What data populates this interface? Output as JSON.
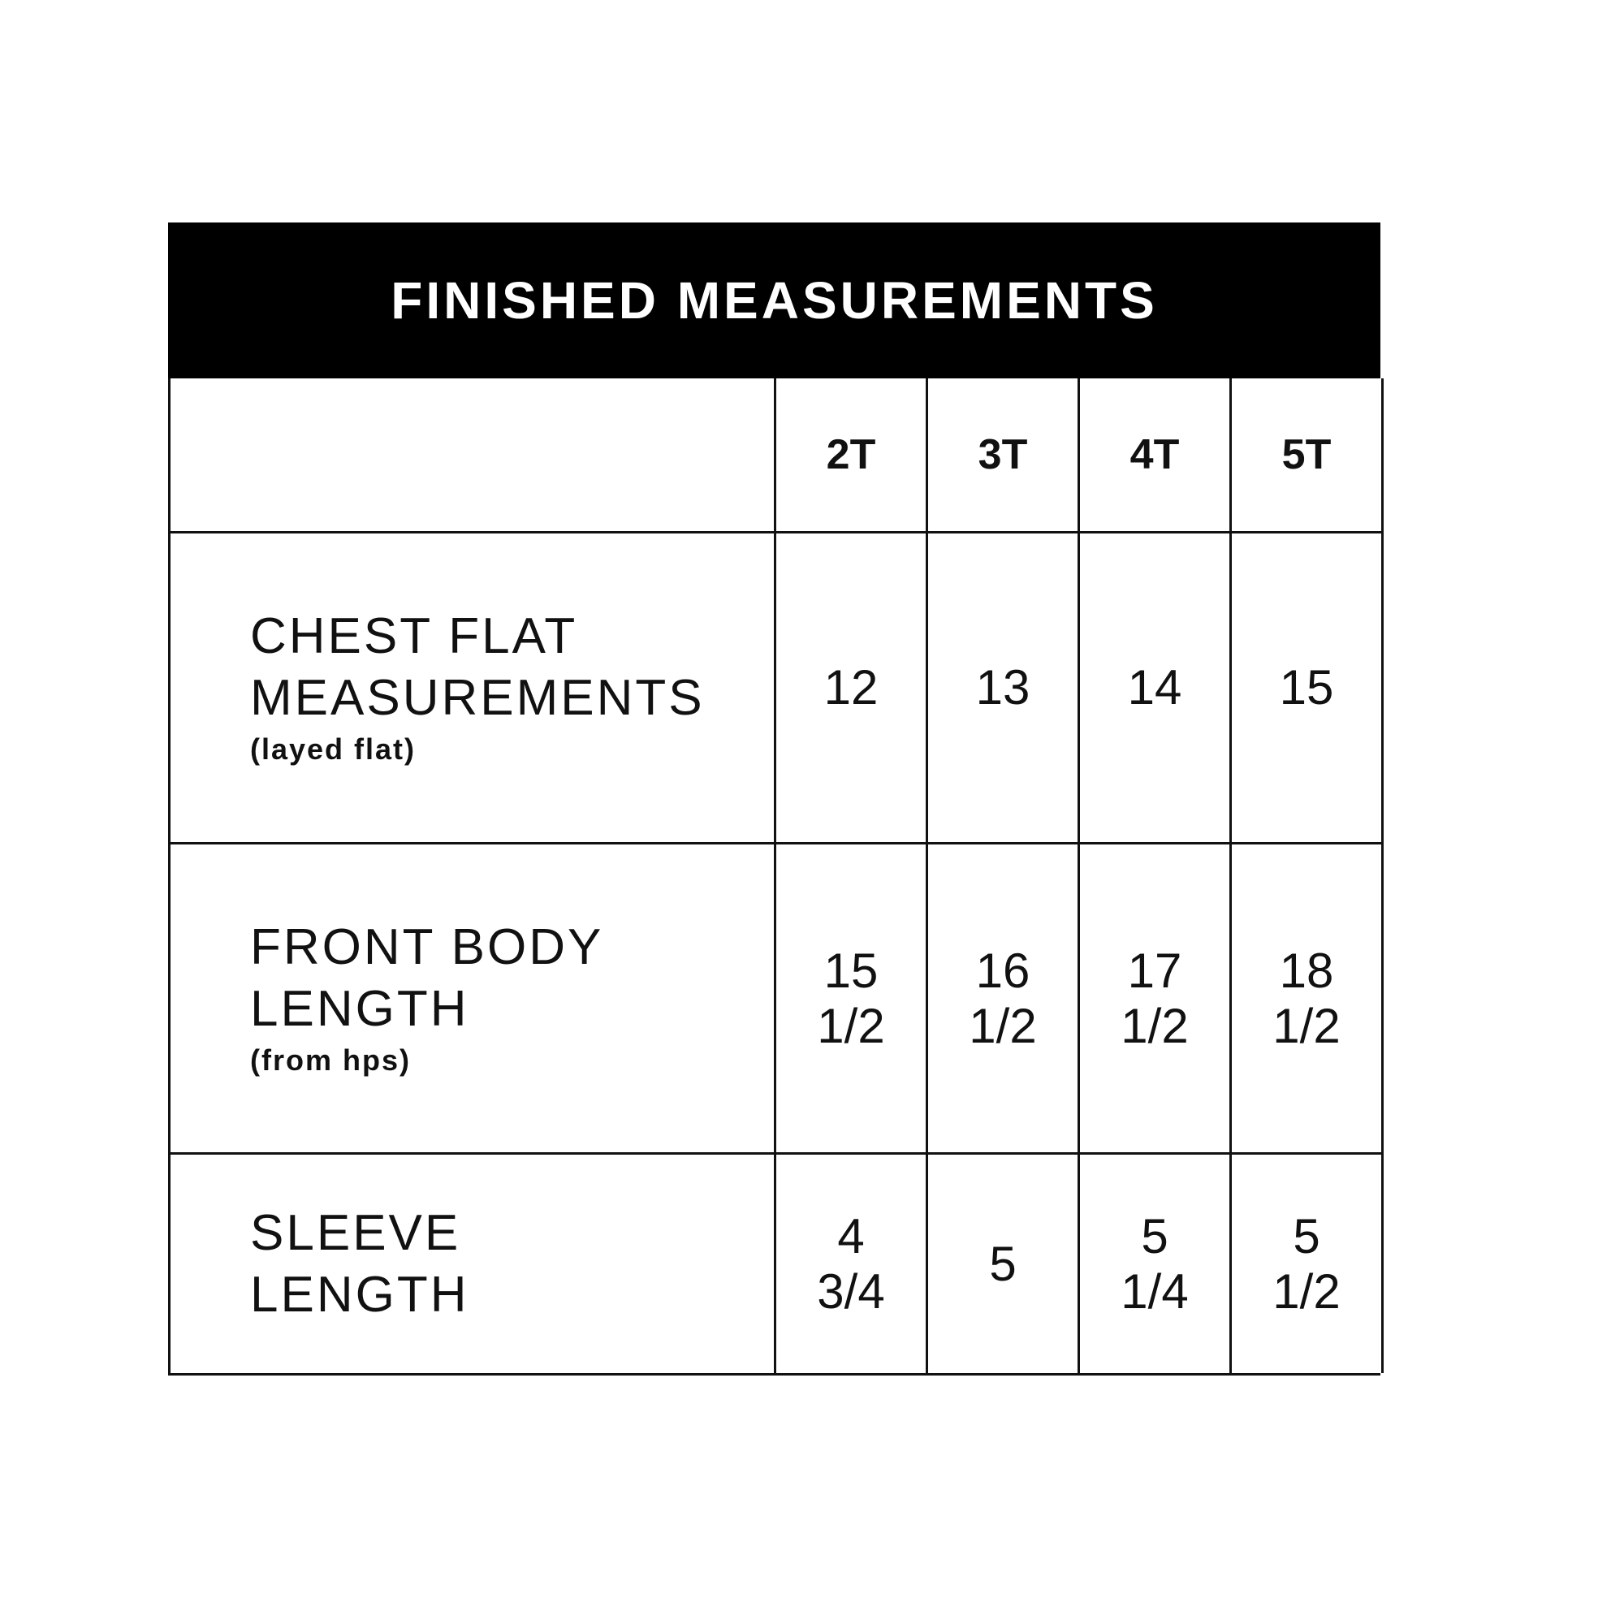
{
  "title": "FINISHED MEASUREMENTS",
  "sizes": [
    "2T",
    "3T",
    "4T",
    "5T"
  ],
  "rows": [
    {
      "label_lines": [
        "CHEST FLAT",
        "MEASUREMENTS"
      ],
      "note": "(layed flat)",
      "values": [
        [
          "12"
        ],
        [
          "13"
        ],
        [
          "14"
        ],
        [
          "15"
        ]
      ]
    },
    {
      "label_lines": [
        "FRONT BODY",
        "LENGTH"
      ],
      "note": "(from hps)",
      "values": [
        [
          "15",
          "1/2"
        ],
        [
          "16",
          "1/2"
        ],
        [
          "17",
          "1/2"
        ],
        [
          "18",
          "1/2"
        ]
      ]
    },
    {
      "label_lines": [
        "SLEEVE",
        "LENGTH"
      ],
      "note": "",
      "values": [
        [
          "4",
          "3/4"
        ],
        [
          "5"
        ],
        [
          "5",
          "1/4"
        ],
        [
          "5",
          "1/2"
        ]
      ]
    }
  ]
}
